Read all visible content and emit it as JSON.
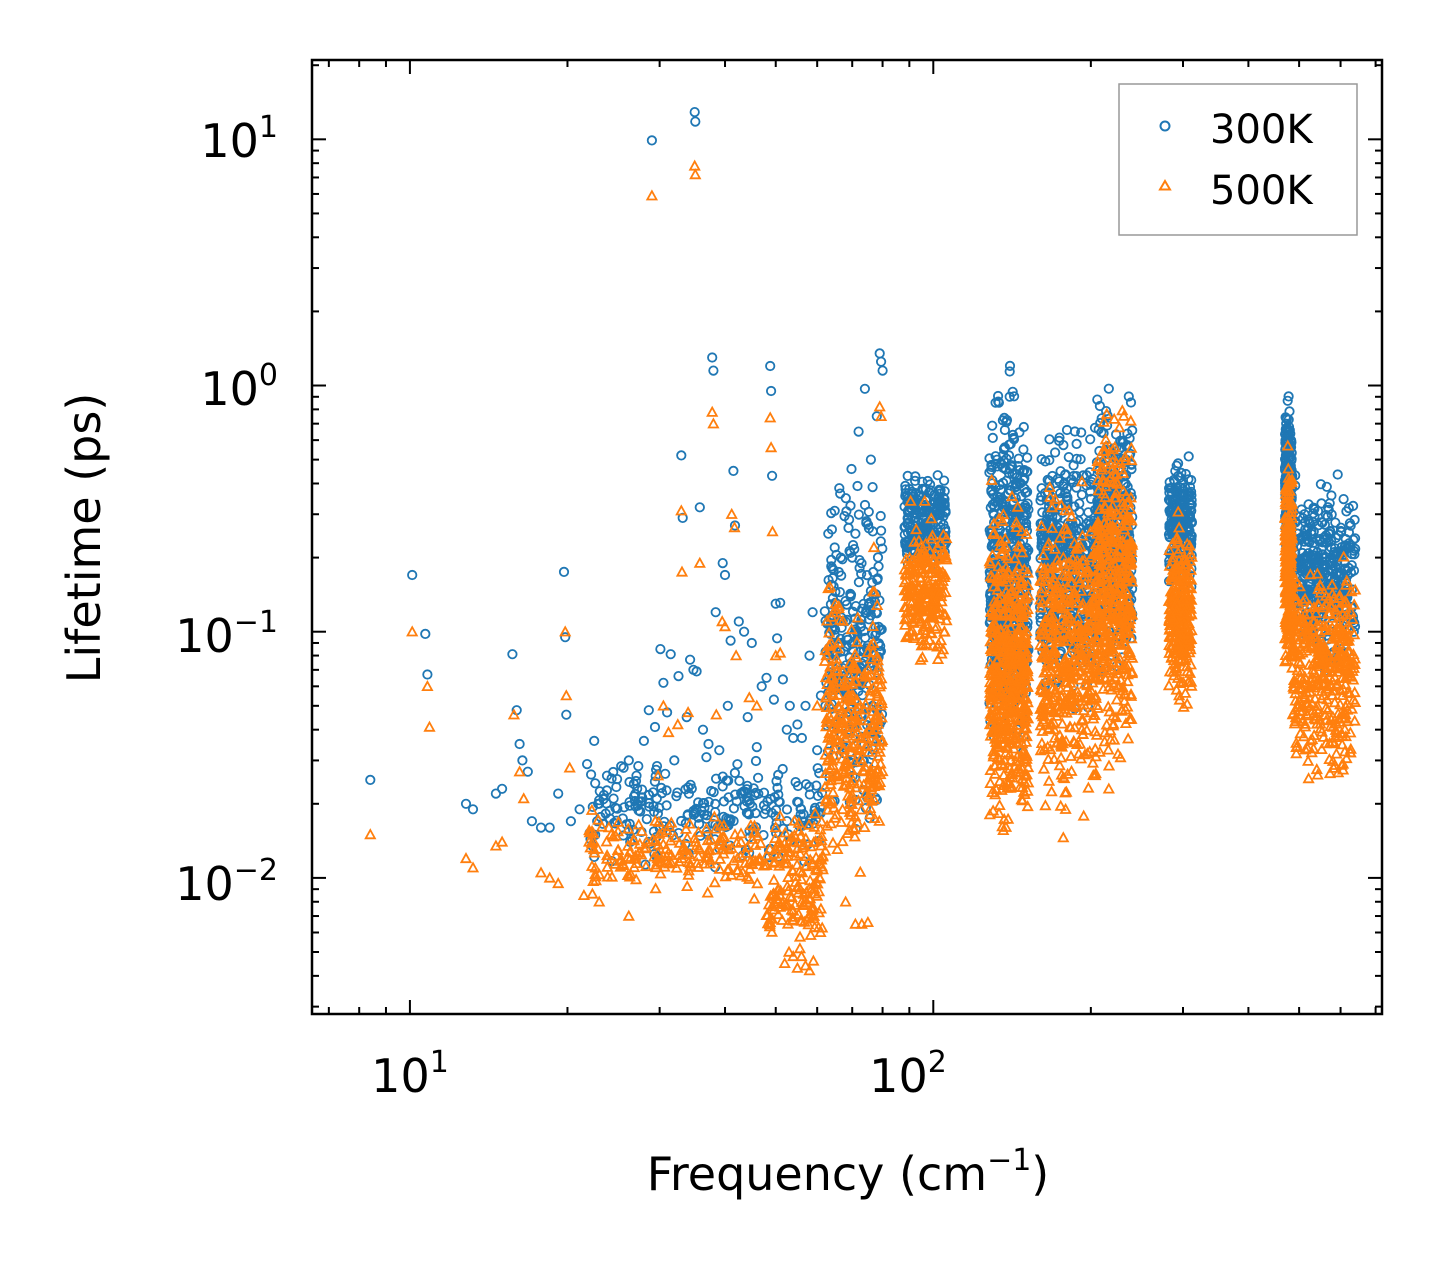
{
  "chart_data": {
    "type": "scatter",
    "title": "",
    "xlabel": "Frequency (cm",
    "xlabel_exp": "−1",
    "xlabel_close": ")",
    "ylabel": "Lifetime (ps)",
    "xscale": "log",
    "yscale": "log",
    "xlim": [
      6.5,
      720
    ],
    "ylim": [
      0.0028,
      21
    ],
    "x_ticks": [
      {
        "value": 10,
        "base": "10",
        "exp": "1"
      },
      {
        "value": 100,
        "base": "10",
        "exp": "2"
      }
    ],
    "y_ticks": [
      {
        "value": 10,
        "base": "10",
        "exp": "1"
      },
      {
        "value": 1,
        "base": "10",
        "exp": "0"
      },
      {
        "value": 0.1,
        "base": "10",
        "exp": "−1"
      },
      {
        "value": 0.01,
        "base": "10",
        "exp": "−2"
      }
    ],
    "legend_position": "top-right",
    "series": [
      {
        "name": "300K",
        "marker": "circle",
        "color": "#1f77b4",
        "points": [
          [
            8.4,
            0.025
          ],
          [
            10.1,
            0.17
          ],
          [
            10.7,
            0.098
          ],
          [
            10.8,
            0.067
          ],
          [
            12.8,
            0.02
          ],
          [
            13.2,
            0.019
          ],
          [
            14.6,
            0.022
          ],
          [
            15.0,
            0.023
          ],
          [
            15.7,
            0.081
          ],
          [
            16.0,
            0.048
          ],
          [
            16.2,
            0.035
          ],
          [
            16.4,
            0.03
          ],
          [
            16.8,
            0.027
          ],
          [
            17.1,
            0.017
          ],
          [
            17.8,
            0.016
          ],
          [
            18.5,
            0.016
          ],
          [
            19.2,
            0.022
          ],
          [
            19.7,
            0.175
          ],
          [
            19.8,
            0.095
          ],
          [
            19.9,
            0.046
          ],
          [
            20.3,
            0.017
          ],
          [
            21.1,
            0.019
          ],
          [
            21.8,
            0.029
          ],
          [
            22.5,
            0.036
          ],
          [
            23.0,
            0.02
          ],
          [
            23.8,
            0.026
          ],
          [
            24.5,
            0.021
          ],
          [
            25.6,
            0.028
          ],
          [
            26.2,
            0.03
          ],
          [
            27.1,
            0.026
          ],
          [
            28.0,
            0.036
          ],
          [
            28.6,
            0.048
          ],
          [
            29.0,
            9.9
          ],
          [
            29.4,
            0.041
          ],
          [
            30.1,
            0.085
          ],
          [
            30.5,
            0.062
          ],
          [
            31.0,
            0.047
          ],
          [
            31.5,
            0.081
          ],
          [
            32.0,
            0.03
          ],
          [
            32.6,
            0.066
          ],
          [
            33.0,
            0.52
          ],
          [
            33.2,
            0.29
          ],
          [
            33.8,
            0.045
          ],
          [
            34.3,
            0.077
          ],
          [
            34.8,
            0.07
          ],
          [
            35.0,
            12.9
          ],
          [
            35.1,
            11.8
          ],
          [
            35.3,
            0.069
          ],
          [
            35.8,
            0.32
          ],
          [
            36.3,
            0.04
          ],
          [
            37.2,
            0.035
          ],
          [
            37.8,
            1.3
          ],
          [
            38.0,
            1.15
          ],
          [
            38.4,
            0.12
          ],
          [
            39.0,
            0.033
          ],
          [
            39.6,
            0.19
          ],
          [
            40.0,
            0.17
          ],
          [
            40.5,
            0.05
          ],
          [
            41.0,
            0.092
          ],
          [
            41.5,
            0.45
          ],
          [
            41.8,
            0.27
          ],
          [
            42.5,
            0.11
          ],
          [
            43.5,
            0.1
          ],
          [
            44.2,
            0.045
          ],
          [
            45.0,
            0.09
          ],
          [
            46.0,
            0.034
          ],
          [
            47.0,
            0.06
          ],
          [
            48.0,
            0.065
          ],
          [
            48.8,
            1.2
          ],
          [
            49.0,
            0.95
          ],
          [
            49.2,
            0.43
          ],
          [
            49.6,
            0.053
          ],
          [
            50.0,
            0.13
          ],
          [
            50.3,
            0.094
          ],
          [
            51.0,
            0.131
          ],
          [
            51.6,
            0.064
          ],
          [
            52.5,
            0.04
          ],
          [
            53.2,
            0.05
          ],
          [
            54.0,
            0.037
          ],
          [
            55.0,
            0.042
          ],
          [
            56.1,
            0.037
          ],
          [
            57.0,
            0.05
          ],
          [
            58.0,
            0.08
          ],
          [
            58.8,
            0.12
          ],
          [
            60.0,
            0.033
          ],
          [
            61.0,
            0.055
          ],
          [
            62.2,
            0.05
          ],
          [
            63.0,
            0.25
          ],
          [
            64.0,
            0.26
          ],
          [
            65.0,
            0.08
          ],
          [
            66.0,
            0.09
          ],
          [
            68.0,
            0.11
          ],
          [
            70.0,
            0.2
          ],
          [
            71.0,
            0.25
          ],
          [
            72.0,
            0.65
          ],
          [
            74.0,
            0.97
          ],
          [
            76.0,
            0.5
          ],
          [
            78.0,
            0.75
          ],
          [
            79.0,
            1.35
          ],
          [
            79.5,
            1.25
          ],
          [
            80.0,
            1.15
          ]
        ],
        "clusters": [
          {
            "x": [
              22,
              62
            ],
            "y": [
              0.01,
              0.035
            ],
            "n": 260
          },
          {
            "x": [
              62,
              80
            ],
            "y": [
              0.012,
              0.6
            ],
            "n": 300
          },
          {
            "x": [
              88,
              106
            ],
            "y": [
              0.15,
              0.5
            ],
            "n": 220
          },
          {
            "x": [
              128,
              152
            ],
            "y": [
              0.02,
              1.6
            ],
            "n": 500
          },
          {
            "x": [
              160,
              205
            ],
            "y": [
              0.04,
              0.9
            ],
            "n": 450
          },
          {
            "x": [
              205,
              240
            ],
            "y": [
              0.05,
              1.2
            ],
            "n": 400
          },
          {
            "x": [
              282,
              312
            ],
            "y": [
              0.12,
              0.6
            ],
            "n": 250
          },
          {
            "x": [
              470,
              485
            ],
            "y": [
              0.15,
              1.05
            ],
            "n": 220
          },
          {
            "x": [
              485,
              640
            ],
            "y": [
              0.06,
              0.5
            ],
            "n": 380
          }
        ]
      },
      {
        "name": "500K",
        "marker": "triangle",
        "color": "#ff7f0e",
        "points": [
          [
            8.4,
            0.015
          ],
          [
            10.1,
            0.1
          ],
          [
            10.8,
            0.06
          ],
          [
            10.9,
            0.041
          ],
          [
            12.8,
            0.012
          ],
          [
            13.2,
            0.011
          ],
          [
            14.6,
            0.0135
          ],
          [
            15.0,
            0.014
          ],
          [
            15.8,
            0.046
          ],
          [
            16.2,
            0.027
          ],
          [
            16.5,
            0.021
          ],
          [
            17.8,
            0.0105
          ],
          [
            18.5,
            0.01
          ],
          [
            19.2,
            0.0095
          ],
          [
            19.8,
            0.1
          ],
          [
            19.9,
            0.055
          ],
          [
            20.2,
            0.028
          ],
          [
            21.5,
            0.0085
          ],
          [
            22.0,
            0.014
          ],
          [
            23.0,
            0.008
          ],
          [
            24.0,
            0.016
          ],
          [
            25.0,
            0.013
          ],
          [
            26.2,
            0.007
          ],
          [
            27.0,
            0.012
          ],
          [
            29.0,
            5.9
          ],
          [
            29.8,
            0.026
          ],
          [
            30.5,
            0.05
          ],
          [
            31.2,
            0.039
          ],
          [
            32.5,
            0.042
          ],
          [
            33.0,
            0.31
          ],
          [
            33.1,
            0.175
          ],
          [
            34.0,
            0.047
          ],
          [
            35.0,
            7.8
          ],
          [
            35.1,
            7.2
          ],
          [
            35.8,
            0.19
          ],
          [
            37.8,
            0.78
          ],
          [
            38.0,
            0.7
          ],
          [
            38.5,
            0.046
          ],
          [
            39.5,
            0.11
          ],
          [
            40.0,
            0.105
          ],
          [
            41.2,
            0.3
          ],
          [
            41.7,
            0.265
          ],
          [
            42.0,
            0.08
          ],
          [
            44.5,
            0.054
          ],
          [
            46.0,
            0.05
          ],
          [
            48.8,
            0.74
          ],
          [
            49.0,
            0.56
          ],
          [
            49.3,
            0.255
          ],
          [
            50.0,
            0.08
          ],
          [
            51.0,
            0.082
          ],
          [
            52.0,
            0.0045
          ],
          [
            53.0,
            0.005
          ],
          [
            54.0,
            0.0048
          ],
          [
            55.0,
            0.0043
          ],
          [
            56.0,
            0.0048
          ],
          [
            57.0,
            0.0044
          ],
          [
            58.0,
            0.0042
          ],
          [
            59.0,
            0.0046
          ],
          [
            60.0,
            0.05
          ],
          [
            62.5,
            0.08
          ],
          [
            63.0,
            0.15
          ],
          [
            65.0,
            0.13
          ],
          [
            68.0,
            0.008
          ],
          [
            71.0,
            0.0065
          ],
          [
            73.0,
            0.0065
          ],
          [
            75.0,
            0.0066
          ],
          [
            77.0,
            0.22
          ],
          [
            79.0,
            0.82
          ],
          [
            79.5,
            0.75
          ]
        ],
        "clusters": [
          {
            "x": [
              22,
              62
            ],
            "y": [
              0.008,
              0.02
            ],
            "n": 280
          },
          {
            "x": [
              48,
              62
            ],
            "y": [
              0.005,
              0.012
            ],
            "n": 90
          },
          {
            "x": [
              62,
              80
            ],
            "y": [
              0.008,
              0.2
            ],
            "n": 320
          },
          {
            "x": [
              88,
              106
            ],
            "y": [
              0.06,
              0.35
            ],
            "n": 240
          },
          {
            "x": [
              128,
              152
            ],
            "y": [
              0.011,
              0.5
            ],
            "n": 520
          },
          {
            "x": [
              160,
              205
            ],
            "y": [
              0.012,
              0.5
            ],
            "n": 460
          },
          {
            "x": [
              205,
              240
            ],
            "y": [
              0.02,
              1.2
            ],
            "n": 420
          },
          {
            "x": [
              282,
              312
            ],
            "y": [
              0.04,
              0.35
            ],
            "n": 260
          },
          {
            "x": [
              470,
              485
            ],
            "y": [
              0.05,
              0.65
            ],
            "n": 230
          },
          {
            "x": [
              485,
              640
            ],
            "y": [
              0.02,
              0.25
            ],
            "n": 400
          }
        ]
      }
    ]
  }
}
